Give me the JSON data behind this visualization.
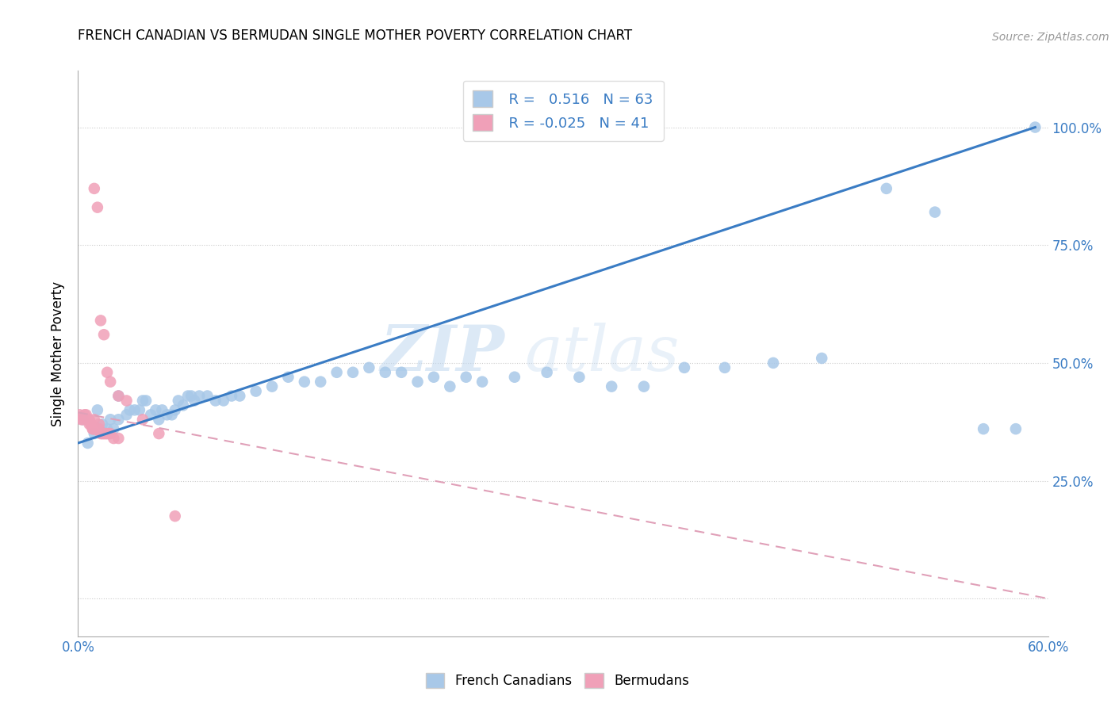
{
  "title": "FRENCH CANADIAN VS BERMUDAN SINGLE MOTHER POVERTY CORRELATION CHART",
  "source": "Source: ZipAtlas.com",
  "ylabel": "Single Mother Poverty",
  "xlim": [
    0.0,
    0.6
  ],
  "ylim": [
    -0.08,
    1.12
  ],
  "r_blue": 0.516,
  "n_blue": 63,
  "r_pink": -0.025,
  "n_pink": 41,
  "blue_color": "#a8c8e8",
  "pink_color": "#f0a0b8",
  "blue_line_color": "#3a7cc4",
  "pink_line_color": "#e0a0b8",
  "watermark_zip": "ZIP",
  "watermark_atlas": "atlas",
  "french_canadians_x": [
    0.003,
    0.006,
    0.01,
    0.012,
    0.015,
    0.018,
    0.02,
    0.022,
    0.025,
    0.025,
    0.03,
    0.032,
    0.035,
    0.038,
    0.04,
    0.042,
    0.045,
    0.048,
    0.05,
    0.052,
    0.055,
    0.058,
    0.06,
    0.062,
    0.065,
    0.068,
    0.07,
    0.072,
    0.075,
    0.08,
    0.085,
    0.09,
    0.095,
    0.1,
    0.11,
    0.12,
    0.13,
    0.14,
    0.15,
    0.16,
    0.17,
    0.18,
    0.19,
    0.2,
    0.21,
    0.22,
    0.23,
    0.24,
    0.25,
    0.27,
    0.29,
    0.31,
    0.33,
    0.35,
    0.375,
    0.4,
    0.43,
    0.46,
    0.5,
    0.53,
    0.56,
    0.58,
    0.592
  ],
  "french_canadians_y": [
    0.38,
    0.33,
    0.35,
    0.4,
    0.37,
    0.36,
    0.38,
    0.36,
    0.38,
    0.43,
    0.39,
    0.4,
    0.4,
    0.4,
    0.42,
    0.42,
    0.39,
    0.4,
    0.38,
    0.4,
    0.39,
    0.39,
    0.4,
    0.42,
    0.41,
    0.43,
    0.43,
    0.42,
    0.43,
    0.43,
    0.42,
    0.42,
    0.43,
    0.43,
    0.44,
    0.45,
    0.47,
    0.46,
    0.46,
    0.48,
    0.48,
    0.49,
    0.48,
    0.48,
    0.46,
    0.47,
    0.45,
    0.47,
    0.46,
    0.47,
    0.48,
    0.47,
    0.45,
    0.45,
    0.49,
    0.49,
    0.5,
    0.51,
    0.87,
    0.82,
    0.36,
    0.36,
    1.0
  ],
  "bermudans_x": [
    0.001,
    0.002,
    0.003,
    0.004,
    0.005,
    0.006,
    0.006,
    0.007,
    0.007,
    0.008,
    0.008,
    0.009,
    0.009,
    0.01,
    0.01,
    0.01,
    0.011,
    0.012,
    0.012,
    0.013,
    0.013,
    0.014,
    0.015,
    0.016,
    0.017,
    0.018,
    0.019,
    0.02,
    0.022,
    0.025,
    0.01,
    0.012,
    0.014,
    0.016,
    0.018,
    0.02,
    0.025,
    0.03,
    0.04,
    0.05,
    0.06
  ],
  "bermudans_y": [
    0.39,
    0.38,
    0.38,
    0.39,
    0.39,
    0.38,
    0.38,
    0.38,
    0.37,
    0.37,
    0.37,
    0.36,
    0.36,
    0.36,
    0.36,
    0.38,
    0.36,
    0.36,
    0.36,
    0.36,
    0.37,
    0.35,
    0.35,
    0.35,
    0.35,
    0.35,
    0.35,
    0.35,
    0.34,
    0.34,
    0.87,
    0.83,
    0.59,
    0.56,
    0.48,
    0.46,
    0.43,
    0.42,
    0.38,
    0.35,
    0.175
  ],
  "blue_line_x": [
    0.0,
    0.592
  ],
  "blue_line_y": [
    0.33,
    1.0
  ],
  "pink_line_x": [
    0.0,
    0.6
  ],
  "pink_line_y": [
    0.395,
    0.0
  ]
}
